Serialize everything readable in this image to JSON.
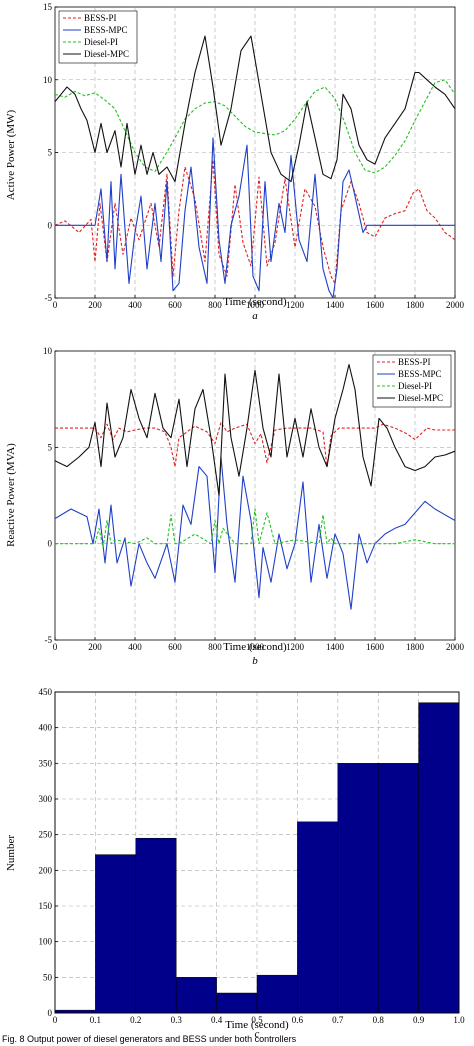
{
  "chart_data": [
    {
      "type": "line",
      "panel_label": "a",
      "xlabel": "Time (second)",
      "ylabel": "Active Power (MW)",
      "xlim": [
        0,
        2000
      ],
      "ylim": [
        -5,
        15
      ],
      "xticks": [
        "0",
        "200",
        "400",
        "600",
        "800",
        "1000",
        "1200",
        "1400",
        "1600",
        "1800",
        "2000"
      ],
      "yticks": [
        "-5",
        "0",
        "5",
        "10",
        "15"
      ],
      "legend_position": "top-left",
      "grid": true,
      "series": [
        {
          "name": "BESS-PI",
          "color": "#e02020",
          "dash": "3,2",
          "x": [
            0,
            50,
            120,
            180,
            200,
            225,
            260,
            300,
            340,
            380,
            420,
            480,
            520,
            560,
            590,
            620,
            650,
            700,
            750,
            790,
            820,
            860,
            900,
            940,
            980,
            1020,
            1060,
            1100,
            1150,
            1200,
            1250,
            1300,
            1340,
            1380,
            1400,
            1430,
            1480,
            1520,
            1560,
            1600,
            1650,
            1700,
            1750,
            1790,
            1820,
            1860,
            1900,
            1950,
            2000
          ],
          "y": [
            0,
            0.3,
            -0.5,
            0.4,
            -2.5,
            1.5,
            -2.5,
            1.5,
            -2.0,
            0.5,
            -1.0,
            1.5,
            -1.5,
            3.5,
            -3.5,
            1.0,
            4.0,
            1.8,
            -2.5,
            4.5,
            -2.0,
            -3.5,
            2.8,
            -1.2,
            -2.8,
            3.3,
            -2.8,
            -1.2,
            3.2,
            -1.5,
            2.5,
            1.3,
            -1.5,
            -3.5,
            -4.0,
            1.0,
            3.0,
            1.5,
            -0.5,
            -0.8,
            0.5,
            0.8,
            1.0,
            2.2,
            2.5,
            1.0,
            0.5,
            -0.5,
            -1.0
          ]
        },
        {
          "name": "BESS-MPC",
          "color": "#1f3fc8",
          "dash": "",
          "x": [
            0,
            200,
            230,
            260,
            280,
            300,
            330,
            370,
            400,
            430,
            460,
            500,
            530,
            560,
            590,
            620,
            650,
            680,
            720,
            760,
            790,
            820,
            850,
            880,
            920,
            960,
            990,
            1020,
            1050,
            1080,
            1120,
            1150,
            1180,
            1220,
            1260,
            1300,
            1340,
            1370,
            1390,
            1410,
            1440,
            1470,
            1500,
            1540,
            1560,
            1580,
            1600,
            1700,
            1800,
            1900,
            2000
          ],
          "y": [
            0,
            0,
            2.5,
            -2.5,
            3.0,
            -3.0,
            3.5,
            -4.0,
            -0.5,
            2.0,
            -3.0,
            1.5,
            -2.5,
            3.0,
            -4.5,
            -4.0,
            1.0,
            4.0,
            -1.5,
            -4.0,
            6.0,
            -1.0,
            -4.0,
            0,
            2.0,
            5.5,
            -3.5,
            -4.5,
            3.0,
            -2.5,
            1.5,
            -0.5,
            4.8,
            -1.0,
            -2.5,
            3.5,
            -3.0,
            -4.5,
            -5.0,
            -3.0,
            3.0,
            3.8,
            2.0,
            -0.5,
            0,
            0,
            0,
            0,
            0,
            0,
            0
          ]
        },
        {
          "name": "Diesel-PI",
          "color": "#22c022",
          "dash": "3,2",
          "x": [
            0,
            50,
            100,
            150,
            200,
            250,
            300,
            350,
            400,
            450,
            500,
            550,
            600,
            650,
            700,
            750,
            800,
            850,
            900,
            950,
            1000,
            1050,
            1100,
            1150,
            1200,
            1250,
            1300,
            1350,
            1400,
            1450,
            1500,
            1550,
            1600,
            1650,
            1700,
            1750,
            1800,
            1850,
            1900,
            1950,
            2000
          ],
          "y": [
            9.0,
            8.8,
            9.2,
            8.9,
            9.1,
            8.6,
            8.0,
            6.5,
            5.0,
            4.0,
            3.7,
            4.8,
            6.0,
            7.3,
            8.0,
            8.4,
            8.5,
            8.2,
            7.5,
            6.8,
            6.4,
            6.3,
            6.2,
            6.5,
            7.3,
            8.3,
            9.2,
            9.5,
            8.7,
            7.0,
            5.0,
            3.8,
            3.6,
            4.0,
            4.8,
            5.8,
            7.2,
            8.5,
            9.8,
            10.0,
            9.0
          ]
        },
        {
          "name": "Diesel-MPC",
          "color": "#111111",
          "dash": "",
          "x": [
            0,
            30,
            60,
            100,
            130,
            160,
            200,
            230,
            260,
            300,
            330,
            360,
            400,
            430,
            460,
            490,
            520,
            560,
            600,
            650,
            700,
            750,
            790,
            830,
            880,
            930,
            980,
            1030,
            1080,
            1130,
            1180,
            1220,
            1260,
            1300,
            1340,
            1380,
            1410,
            1440,
            1480,
            1520,
            1560,
            1600,
            1650,
            1700,
            1750,
            1800,
            1820,
            1860,
            1900,
            1950,
            2000
          ],
          "y": [
            8.5,
            9.0,
            9.5,
            9.0,
            8.0,
            7.2,
            5.0,
            7.0,
            5.0,
            6.5,
            4.0,
            7.0,
            3.5,
            5.5,
            3.5,
            5.0,
            3.5,
            4.0,
            3.0,
            7.0,
            10.5,
            13.0,
            9.5,
            5.5,
            8.0,
            12.0,
            13.0,
            9.0,
            5.0,
            3.5,
            3.0,
            5.5,
            8.5,
            6.0,
            3.5,
            3.2,
            4.5,
            9.0,
            8.0,
            5.5,
            4.5,
            4.2,
            6.0,
            7.0,
            8.0,
            10.5,
            10.5,
            10.0,
            9.5,
            9.0,
            8.0
          ]
        }
      ]
    },
    {
      "type": "line",
      "panel_label": "b",
      "xlabel": "Time (second)",
      "ylabel": "Reactive Power (MVA)",
      "xlim": [
        0,
        2000
      ],
      "ylim": [
        -5,
        10
      ],
      "xticks": [
        "0",
        "200",
        "400",
        "600",
        "800",
        "1000",
        "1200",
        "1400",
        "1600",
        "1800",
        "2000"
      ],
      "yticks": [
        "-5",
        "0",
        "5",
        "10"
      ],
      "legend_position": "top-right",
      "grid": true,
      "series": [
        {
          "name": "BESS-PI",
          "color": "#e02020",
          "dash": "3,2",
          "x": [
            0,
            100,
            200,
            230,
            260,
            290,
            320,
            360,
            400,
            450,
            500,
            550,
            580,
            600,
            620,
            700,
            760,
            800,
            830,
            860,
            900,
            960,
            1000,
            1030,
            1060,
            1100,
            1160,
            1200,
            1280,
            1340,
            1360,
            1380,
            1420,
            1500,
            1600,
            1640,
            1700,
            1760,
            1800,
            1860,
            1900,
            2000
          ],
          "y": [
            6.0,
            6.0,
            6.0,
            5.5,
            6.2,
            5.4,
            6.0,
            5.8,
            5.9,
            6.0,
            6.0,
            5.8,
            5.0,
            4.0,
            5.5,
            6.1,
            5.8,
            5.2,
            6.3,
            5.8,
            6.0,
            6.2,
            5.2,
            5.7,
            4.2,
            5.9,
            6.0,
            6.0,
            6.0,
            5.8,
            4.0,
            5.6,
            6.0,
            6.0,
            6.0,
            6.2,
            6.0,
            5.7,
            5.4,
            6.0,
            5.9,
            5.9
          ]
        },
        {
          "name": "BESS-MPC",
          "color": "#1f3fc8",
          "dash": "",
          "x": [
            0,
            80,
            160,
            190,
            220,
            250,
            280,
            310,
            350,
            380,
            420,
            460,
            500,
            560,
            600,
            640,
            680,
            720,
            760,
            800,
            830,
            860,
            900,
            940,
            980,
            1020,
            1040,
            1080,
            1120,
            1160,
            1200,
            1240,
            1280,
            1320,
            1360,
            1400,
            1440,
            1480,
            1520,
            1560,
            1600,
            1650,
            1700,
            1750,
            1800,
            1850,
            1900,
            1950,
            2000
          ],
          "y": [
            1.3,
            1.8,
            1.4,
            0,
            1.8,
            -1.0,
            2.0,
            -1.0,
            0.3,
            -2.2,
            0,
            -1.0,
            -1.8,
            0,
            -2.0,
            2.0,
            1.0,
            4.0,
            3.5,
            -1.5,
            4.5,
            1.0,
            -2.0,
            3.5,
            1.2,
            -2.8,
            -0.2,
            -2.0,
            0.5,
            -1.3,
            0,
            3.2,
            -2.0,
            1.0,
            -1.8,
            0.5,
            -0.5,
            -3.4,
            0.5,
            -1.0,
            0,
            0.5,
            0.8,
            1.0,
            1.6,
            2.2,
            1.8,
            1.5,
            1.2
          ]
        },
        {
          "name": "Diesel-PI",
          "color": "#22c022",
          "dash": "3,2",
          "x": [
            0,
            100,
            200,
            220,
            240,
            260,
            280,
            300,
            400,
            460,
            500,
            560,
            580,
            600,
            620,
            700,
            780,
            800,
            820,
            840,
            900,
            980,
            1000,
            1020,
            1060,
            1100,
            1200,
            1320,
            1340,
            1360,
            1380,
            1400,
            1500,
            1600,
            1700,
            1800,
            1900,
            2000
          ],
          "y": [
            0,
            0,
            0,
            0.8,
            -0.2,
            1.2,
            0,
            0.2,
            0,
            0.3,
            0,
            0,
            1.5,
            0,
            0,
            0.5,
            0,
            1.2,
            0,
            0.8,
            0,
            0,
            1.8,
            0,
            1.6,
            0,
            0.2,
            0,
            1.5,
            0,
            0.3,
            0,
            0,
            0,
            0,
            0.2,
            0,
            0
          ]
        },
        {
          "name": "Diesel-MPC",
          "color": "#111111",
          "dash": "",
          "x": [
            0,
            60,
            120,
            170,
            200,
            230,
            260,
            300,
            340,
            380,
            420,
            460,
            500,
            540,
            580,
            620,
            660,
            700,
            740,
            780,
            820,
            850,
            880,
            920,
            960,
            1000,
            1040,
            1080,
            1120,
            1160,
            1200,
            1240,
            1280,
            1320,
            1360,
            1400,
            1440,
            1470,
            1500,
            1540,
            1580,
            1620,
            1660,
            1700,
            1750,
            1800,
            1850,
            1900,
            1950,
            2000
          ],
          "y": [
            4.3,
            4.0,
            4.5,
            5.0,
            6.3,
            4.0,
            7.3,
            4.5,
            5.5,
            8.0,
            6.5,
            5.5,
            7.8,
            6.0,
            5.5,
            7.5,
            4.0,
            7.0,
            8.0,
            5.5,
            2.5,
            8.8,
            5.5,
            3.5,
            6.0,
            9.0,
            6.0,
            4.5,
            8.8,
            4.5,
            6.5,
            4.5,
            7.0,
            5.0,
            4.0,
            6.5,
            8.0,
            9.3,
            8.0,
            4.5,
            3.0,
            6.5,
            6.0,
            5.0,
            4.0,
            3.8,
            4.0,
            4.5,
            4.6,
            4.8
          ]
        }
      ]
    },
    {
      "type": "bar",
      "panel_label": "c",
      "xlabel": "Time (second)",
      "ylabel": "Number",
      "xlim": [
        0,
        1.0
      ],
      "ylim": [
        0,
        450
      ],
      "xticks": [
        "0",
        "0.1",
        "0.2",
        "0.3",
        "0.4",
        "0.5",
        "0.6",
        "0.7",
        "0.8",
        "0.9",
        "1.0"
      ],
      "yticks": [
        "0",
        "50",
        "100",
        "150",
        "200",
        "250",
        "300",
        "350",
        "400",
        "450"
      ],
      "bar_color": "#00008b",
      "grid": true,
      "bins": [
        [
          0,
          0.1
        ],
        [
          0.1,
          0.2
        ],
        [
          0.2,
          0.3
        ],
        [
          0.3,
          0.4
        ],
        [
          0.4,
          0.5
        ],
        [
          0.5,
          0.6
        ],
        [
          0.6,
          0.7
        ],
        [
          0.7,
          0.8
        ],
        [
          0.8,
          0.9
        ],
        [
          0.9,
          1.0
        ]
      ],
      "values": [
        4,
        222,
        245,
        50,
        28,
        53,
        268,
        350,
        350,
        435
      ]
    }
  ],
  "caption": "Fig. 8  Output power of diesel generators and BESS under both controllers"
}
